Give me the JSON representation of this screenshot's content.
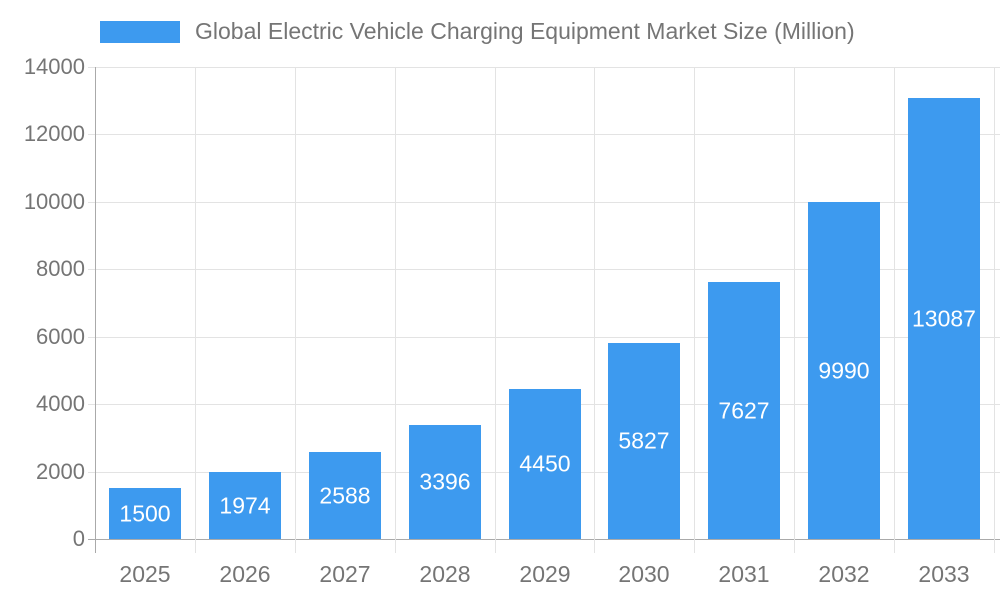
{
  "chart_data": {
    "type": "bar",
    "title": "Global Electric Vehicle Charging Equipment Market Size (Million)",
    "categories": [
      "2025",
      "2026",
      "2027",
      "2028",
      "2029",
      "2030",
      "2031",
      "2032",
      "2033"
    ],
    "values": [
      1500,
      1974,
      2588,
      3396,
      4450,
      5827,
      7627,
      9990,
      13087
    ],
    "xlabel": "",
    "ylabel": "",
    "ylim": [
      0,
      14000
    ],
    "ytick_step": 2000,
    "ytick_labels": [
      "0",
      "2000",
      "4000",
      "6000",
      "8000",
      "10000",
      "12000",
      "14000"
    ],
    "grid": true,
    "legend_position": "top-left",
    "value_labels_shown": true,
    "colors": {
      "bar": "#3D9AEF",
      "grid": "#E3E3E3",
      "axis": "#AAAAAA",
      "text": "#757575",
      "value_label": "#FFFFFF",
      "background": "#FFFFFF"
    }
  }
}
